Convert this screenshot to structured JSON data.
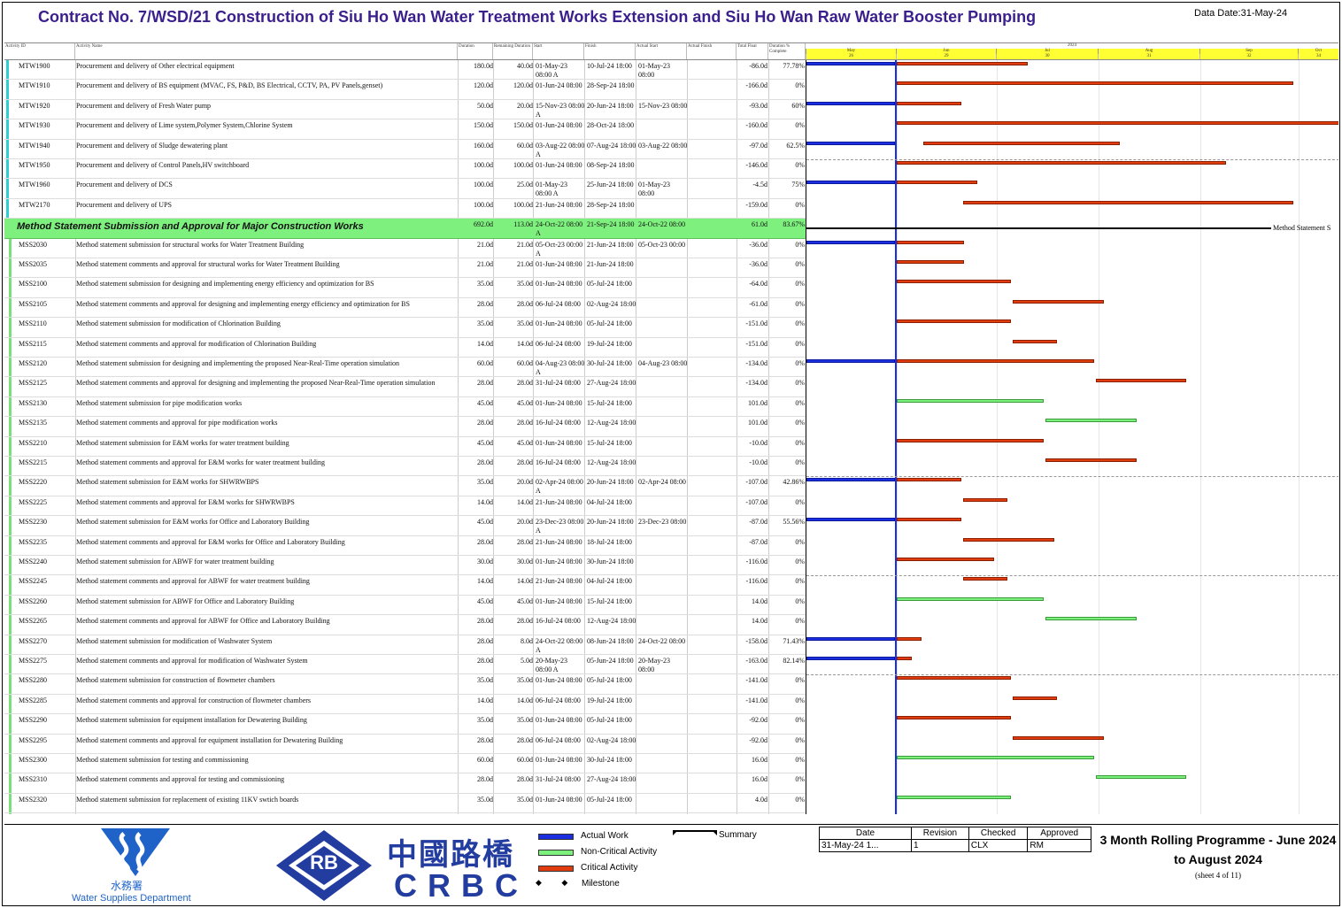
{
  "title": "Contract No. 7/WSD/21 Construction of Siu Ho Wan Water Treatment Works Extension and Siu Ho Wan Raw Water Booster Pumping",
  "data_date": "Data Date:31-May-24",
  "columns": [
    "Activity ID",
    "Activity Name",
    "Duration",
    "Remaining Duration",
    "Start",
    "Finish",
    "Actual Start",
    "Actual Finish",
    "Total Float",
    "Duration % Complete"
  ],
  "timescale": {
    "year": "2024",
    "months": [
      "May",
      "Jun",
      "Jul",
      "Aug",
      "Sep",
      "Oct"
    ],
    "weeks": [
      "26",
      "27",
      "28",
      "29",
      "30",
      "31",
      "32",
      "33",
      "34",
      "35",
      "36"
    ]
  },
  "rows": [
    {
      "id": "MTW1900",
      "name": "Procurement and delivery of Other electrical equipment",
      "dur": "180.0d",
      "rem": "40.0d",
      "start": "01-May-23 08:00 A",
      "finish": "10-Jul-24 18:00",
      "astart": "01-May-23 08:00",
      "float": "-86.0d",
      "pct": "77.78%",
      "bars": [
        {
          "type": "actual",
          "s": 0,
          "e": 100
        },
        {
          "type": "critical",
          "s": 102,
          "e": 250
        }
      ]
    },
    {
      "id": "MTW1910",
      "name": "Procurement and delivery of BS equipment (MVAC, FS, P&D, BS Electrical, CCTV, PA, PV Panels,genset)",
      "dur": "120.0d",
      "rem": "120.0d",
      "start": "01-Jun-24 08:00",
      "finish": "28-Sep-24 18:00",
      "astart": "",
      "float": "-166.0d",
      "pct": "0%",
      "bars": [
        {
          "type": "critical",
          "s": 102,
          "e": 550
        }
      ]
    },
    {
      "id": "MTW1920",
      "name": "Procurement and delivery of Fresh Water pump",
      "dur": "50.0d",
      "rem": "20.0d",
      "start": "15-Nov-23 08:00 A",
      "finish": "20-Jun-24 18:00",
      "astart": "15-Nov-23 08:00",
      "float": "-93.0d",
      "pct": "60%",
      "bars": [
        {
          "type": "actual",
          "s": 0,
          "e": 100
        },
        {
          "type": "critical",
          "s": 102,
          "e": 175
        }
      ]
    },
    {
      "id": "MTW1930",
      "name": "Procurement and delivery of Lime system,Polymer System,Chlorine System",
      "dur": "150.0d",
      "rem": "150.0d",
      "start": "01-Jun-24 08:00",
      "finish": "28-Oct-24 18:00",
      "astart": "",
      "float": "-160.0d",
      "pct": "0%",
      "bars": [
        {
          "type": "critical",
          "s": 102,
          "e": 602
        }
      ]
    },
    {
      "id": "MTW1940",
      "name": "Procurement and delivery of Sludge dewatering plant",
      "dur": "160.0d",
      "rem": "60.0d",
      "start": "03-Aug-22 08:00 A",
      "finish": "07-Aug-24 18:00",
      "astart": "03-Aug-22 08:00",
      "float": "-97.0d",
      "pct": "62.5%",
      "bars": [
        {
          "type": "actual",
          "s": 0,
          "e": 100
        },
        {
          "type": "critical",
          "s": 132,
          "e": 354
        }
      ]
    },
    {
      "id": "MTW1950",
      "name": "Procurement and delivery of Control Panels,HV switchboard",
      "dur": "100.0d",
      "rem": "100.0d",
      "start": "01-Jun-24 08:00",
      "finish": "08-Sep-24 18:00",
      "astart": "",
      "float": "-146.0d",
      "pct": "0%",
      "bars": [
        {
          "type": "critical",
          "s": 102,
          "e": 474
        }
      ]
    },
    {
      "id": "MTW1960",
      "name": "Procurement and delivery of DCS",
      "dur": "100.0d",
      "rem": "25.0d",
      "start": "01-May-23 08:00 A",
      "finish": "25-Jun-24 18:00",
      "astart": "01-May-23 08:00",
      "float": "-4.5d",
      "pct": "75%",
      "bars": [
        {
          "type": "actual",
          "s": 0,
          "e": 100
        },
        {
          "type": "critical",
          "s": 102,
          "e": 193
        }
      ]
    },
    {
      "id": "MTW2170",
      "name": "Procurement and delivery of UPS",
      "dur": "100.0d",
      "rem": "100.0d",
      "start": "21-Jun-24 08:00",
      "finish": "28-Sep-24 18:00",
      "astart": "",
      "float": "-159.0d",
      "pct": "0%",
      "bars": [
        {
          "type": "critical",
          "s": 177,
          "e": 550
        }
      ]
    },
    {
      "band": true,
      "wbs": "Method Statement Submission and Approval for Major Construction Works",
      "dur": "692.0d",
      "rem": "113.0d",
      "start": "24-Oct-22 08:00 A",
      "finish": "21-Sep-24 18:00",
      "astart": "24-Oct-22 08:00",
      "float": "61.0d",
      "pct": "83.67%",
      "summary_label": "Method Statement S"
    },
    {
      "id": "MSS2030",
      "name": "Method statement submission for structural works for Water Treatment Building",
      "dur": "21.0d",
      "rem": "21.0d",
      "start": "05-Oct-23 00:00 A",
      "finish": "21-Jun-24 18:00",
      "astart": "05-Oct-23 00:00",
      "float": "-36.0d",
      "pct": "0%",
      "bars": [
        {
          "type": "actual",
          "s": 0,
          "e": 100
        },
        {
          "type": "critical",
          "s": 102,
          "e": 178
        }
      ]
    },
    {
      "id": "MSS2035",
      "name": "Method statement comments and approval for structural works for Water Treatment Building",
      "dur": "21.0d",
      "rem": "21.0d",
      "start": "01-Jun-24 08:00",
      "finish": "21-Jun-24 18:00",
      "astart": "",
      "float": "-36.0d",
      "pct": "0%",
      "bars": [
        {
          "type": "critical",
          "s": 102,
          "e": 178
        }
      ]
    },
    {
      "id": "MSS2100",
      "name": "Method statement submission for designing and implementing energy efficiency and optimization for BS",
      "dur": "35.0d",
      "rem": "35.0d",
      "start": "01-Jun-24 08:00",
      "finish": "05-Jul-24 18:00",
      "astart": "",
      "float": "-64.0d",
      "pct": "0%",
      "bars": [
        {
          "type": "critical",
          "s": 102,
          "e": 231
        }
      ]
    },
    {
      "id": "MSS2105",
      "name": "Method statement comments and approval for designing and implementing energy efficiency and optimization for BS",
      "dur": "28.0d",
      "rem": "28.0d",
      "start": "06-Jul-24 08:00",
      "finish": "02-Aug-24 18:00",
      "astart": "",
      "float": "-61.0d",
      "pct": "0%",
      "bars": [
        {
          "type": "critical",
          "s": 233,
          "e": 336
        }
      ]
    },
    {
      "id": "MSS2110",
      "name": "Method statement submission for modification of Chlorination Building",
      "dur": "35.0d",
      "rem": "35.0d",
      "start": "01-Jun-24 08:00",
      "finish": "05-Jul-24 18:00",
      "astart": "",
      "float": "-151.0d",
      "pct": "0%",
      "bars": [
        {
          "type": "critical",
          "s": 102,
          "e": 231
        }
      ]
    },
    {
      "id": "MSS2115",
      "name": "Method statement  comments and approval for modification of Chlorination Building",
      "dur": "14.0d",
      "rem": "14.0d",
      "start": "06-Jul-24 08:00",
      "finish": "19-Jul-24 18:00",
      "astart": "",
      "float": "-151.0d",
      "pct": "0%",
      "bars": [
        {
          "type": "critical",
          "s": 233,
          "e": 283
        }
      ]
    },
    {
      "id": "MSS2120",
      "name": "Method statement submission for designing and implementing the proposed Near-Real-Time operation simulation",
      "dur": "60.0d",
      "rem": "60.0d",
      "start": "04-Aug-23 08:00 A",
      "finish": "30-Jul-24 18:00",
      "astart": "04-Aug-23 08:00",
      "float": "-134.0d",
      "pct": "0%",
      "bars": [
        {
          "type": "actual",
          "s": 0,
          "e": 100
        },
        {
          "type": "critical",
          "s": 102,
          "e": 325
        }
      ]
    },
    {
      "id": "MSS2125",
      "name": "Method statement comments and approval for designing and implementing the proposed Near-Real-Time operation simulation",
      "dur": "28.0d",
      "rem": "28.0d",
      "start": "31-Jul-24 08:00",
      "finish": "27-Aug-24 18:00",
      "astart": "",
      "float": "-134.0d",
      "pct": "0%",
      "bars": [
        {
          "type": "critical",
          "s": 327,
          "e": 429
        }
      ]
    },
    {
      "id": "MSS2130",
      "name": "Method statement submission for pipe modification works",
      "dur": "45.0d",
      "rem": "45.0d",
      "start": "01-Jun-24 08:00",
      "finish": "15-Jul-24 18:00",
      "astart": "",
      "float": "101.0d",
      "pct": "0%",
      "bars": [
        {
          "type": "noncrit",
          "s": 102,
          "e": 268
        }
      ]
    },
    {
      "id": "MSS2135",
      "name": "Method statement comments and approval for pipe modification works",
      "dur": "28.0d",
      "rem": "28.0d",
      "start": "16-Jul-24 08:00",
      "finish": "12-Aug-24 18:00",
      "astart": "",
      "float": "101.0d",
      "pct": "0%",
      "bars": [
        {
          "type": "noncrit",
          "s": 270,
          "e": 373
        }
      ]
    },
    {
      "id": "MSS2210",
      "name": "Method statement submission for E&M works for water treatment building",
      "dur": "45.0d",
      "rem": "45.0d",
      "start": "01-Jun-24 08:00",
      "finish": "15-Jul-24 18:00",
      "astart": "",
      "float": "-10.0d",
      "pct": "0%",
      "bars": [
        {
          "type": "critical",
          "s": 102,
          "e": 268
        }
      ]
    },
    {
      "id": "MSS2215",
      "name": "Method statement comments and approval for E&M works for water treatment building",
      "dur": "28.0d",
      "rem": "28.0d",
      "start": "16-Jul-24 08:00",
      "finish": "12-Aug-24 18:00",
      "astart": "",
      "float": "-10.0d",
      "pct": "0%",
      "bars": [
        {
          "type": "critical",
          "s": 270,
          "e": 373
        }
      ]
    },
    {
      "id": "MSS2220",
      "name": "Method statement submission for E&M works for SHWRWBPS",
      "dur": "35.0d",
      "rem": "20.0d",
      "start": "02-Apr-24 08:00 A",
      "finish": "20-Jun-24 18:00",
      "astart": "02-Apr-24 08:00",
      "float": "-107.0d",
      "pct": "42.86%",
      "bars": [
        {
          "type": "actual",
          "s": 0,
          "e": 100
        },
        {
          "type": "critical",
          "s": 102,
          "e": 175
        }
      ]
    },
    {
      "id": "MSS2225",
      "name": "Method statement comments and approval for E&M works for SHWRWBPS",
      "dur": "14.0d",
      "rem": "14.0d",
      "start": "21-Jun-24 08:00",
      "finish": "04-Jul-24 18:00",
      "astart": "",
      "float": "-107.0d",
      "pct": "0%",
      "bars": [
        {
          "type": "critical",
          "s": 177,
          "e": 227
        }
      ]
    },
    {
      "id": "MSS2230",
      "name": "Method statement submission for E&M works for Office and Laboratory Building",
      "dur": "45.0d",
      "rem": "20.0d",
      "start": "23-Dec-23 08:00 A",
      "finish": "20-Jun-24 18:00",
      "astart": "23-Dec-23 08:00",
      "float": "-87.0d",
      "pct": "55.56%",
      "bars": [
        {
          "type": "actual",
          "s": 0,
          "e": 100
        },
        {
          "type": "critical",
          "s": 102,
          "e": 175
        }
      ]
    },
    {
      "id": "MSS2235",
      "name": "Method statement comments and approval for E&M works for Office and Laboratory Building",
      "dur": "28.0d",
      "rem": "28.0d",
      "start": "21-Jun-24 08:00",
      "finish": "18-Jul-24 18:00",
      "astart": "",
      "float": "-87.0d",
      "pct": "0%",
      "bars": [
        {
          "type": "critical",
          "s": 177,
          "e": 280
        }
      ]
    },
    {
      "id": "MSS2240",
      "name": "Method statement submission for ABWF for water treatment building",
      "dur": "30.0d",
      "rem": "30.0d",
      "start": "01-Jun-24 08:00",
      "finish": "30-Jun-24 18:00",
      "astart": "",
      "float": "-116.0d",
      "pct": "0%",
      "bars": [
        {
          "type": "critical",
          "s": 102,
          "e": 212
        }
      ]
    },
    {
      "id": "MSS2245",
      "name": "Method statement comments and approval for ABWF for water treatment building",
      "dur": "14.0d",
      "rem": "14.0d",
      "start": "21-Jun-24 08:00",
      "finish": "04-Jul-24 18:00",
      "astart": "",
      "float": "-116.0d",
      "pct": "0%",
      "bars": [
        {
          "type": "critical",
          "s": 177,
          "e": 227
        }
      ]
    },
    {
      "id": "MSS2260",
      "name": "Method statement submission for ABWF for Office and Laboratory Building",
      "dur": "45.0d",
      "rem": "45.0d",
      "start": "01-Jun-24 08:00",
      "finish": "15-Jul-24 18:00",
      "astart": "",
      "float": "14.0d",
      "pct": "0%",
      "bars": [
        {
          "type": "noncrit",
          "s": 102,
          "e": 268
        }
      ]
    },
    {
      "id": "MSS2265",
      "name": "Method statement comments and approval for ABWF for Office and Laboratory Building",
      "dur": "28.0d",
      "rem": "28.0d",
      "start": "16-Jul-24 08:00",
      "finish": "12-Aug-24 18:00",
      "astart": "",
      "float": "14.0d",
      "pct": "0%",
      "bars": [
        {
          "type": "noncrit",
          "s": 270,
          "e": 373
        }
      ]
    },
    {
      "id": "MSS2270",
      "name": "Method statement submission for modification of Washwater System",
      "dur": "28.0d",
      "rem": "8.0d",
      "start": "24-Oct-22 08:00 A",
      "finish": "08-Jun-24 18:00",
      "astart": "24-Oct-22 08:00",
      "float": "-158.0d",
      "pct": "71.43%",
      "bars": [
        {
          "type": "actual",
          "s": 0,
          "e": 100
        },
        {
          "type": "critical",
          "s": 102,
          "e": 130
        }
      ]
    },
    {
      "id": "MSS2275",
      "name": "Method statement comments and approval for modification of Washwater System",
      "dur": "28.0d",
      "rem": "5.0d",
      "start": "20-May-23 08:00 A",
      "finish": "05-Jun-24 18:00",
      "astart": "20-May-23 08:00",
      "float": "-163.0d",
      "pct": "82.14%",
      "bars": [
        {
          "type": "actual",
          "s": 0,
          "e": 100
        },
        {
          "type": "critical",
          "s": 102,
          "e": 119
        }
      ]
    },
    {
      "id": "MSS2280",
      "name": "Method statement submission for construction of flowmeter chambers",
      "dur": "35.0d",
      "rem": "35.0d",
      "start": "01-Jun-24 08:00",
      "finish": "05-Jul-24 18:00",
      "astart": "",
      "float": "-141.0d",
      "pct": "0%",
      "bars": [
        {
          "type": "critical",
          "s": 102,
          "e": 231
        }
      ]
    },
    {
      "id": "MSS2285",
      "name": "Method statement comments and approval for construction of flowmeter chambers",
      "dur": "14.0d",
      "rem": "14.0d",
      "start": "06-Jul-24 08:00",
      "finish": "19-Jul-24 18:00",
      "astart": "",
      "float": "-141.0d",
      "pct": "0%",
      "bars": [
        {
          "type": "critical",
          "s": 233,
          "e": 283
        }
      ]
    },
    {
      "id": "MSS2290",
      "name": "Method statement submission for equipment installation for Dewatering Building",
      "dur": "35.0d",
      "rem": "35.0d",
      "start": "01-Jun-24 08:00",
      "finish": "05-Jul-24 18:00",
      "astart": "",
      "float": "-92.0d",
      "pct": "0%",
      "bars": [
        {
          "type": "critical",
          "s": 102,
          "e": 231
        }
      ]
    },
    {
      "id": "MSS2295",
      "name": "Method statement comments and approval for equipment installation for Dewatering Building",
      "dur": "28.0d",
      "rem": "28.0d",
      "start": "06-Jul-24 08:00",
      "finish": "02-Aug-24 18:00",
      "astart": "",
      "float": "-92.0d",
      "pct": "0%",
      "bars": [
        {
          "type": "critical",
          "s": 233,
          "e": 336
        }
      ]
    },
    {
      "id": "MSS2300",
      "name": "Method statement submission for testing and commissioning",
      "dur": "60.0d",
      "rem": "60.0d",
      "start": "01-Jun-24 08:00",
      "finish": "30-Jul-24 18:00",
      "astart": "",
      "float": "16.0d",
      "pct": "0%",
      "bars": [
        {
          "type": "noncrit",
          "s": 102,
          "e": 325
        }
      ]
    },
    {
      "id": "MSS2310",
      "name": "Method statement comments and approval for testing and commissioning",
      "dur": "28.0d",
      "rem": "28.0d",
      "start": "31-Jul-24 08:00",
      "finish": "27-Aug-24 18:00",
      "astart": "",
      "float": "16.0d",
      "pct": "0%",
      "bars": [
        {
          "type": "noncrit",
          "s": 327,
          "e": 429
        }
      ]
    },
    {
      "id": "MSS2320",
      "name": "Method statement submission for replacement of existing 11KV swtich boards",
      "dur": "35.0d",
      "rem": "35.0d",
      "start": "01-Jun-24 08:00",
      "finish": "05-Jul-24 18:00",
      "astart": "",
      "float": "4.0d",
      "pct": "0%",
      "bars": [
        {
          "type": "noncrit",
          "s": 102,
          "e": 231
        }
      ]
    }
  ],
  "legend": {
    "actual": "Actual Work",
    "noncritical": "Non-Critical Activity",
    "critical": "Critical Activity",
    "milestone": "Milestone",
    "summary": "Summary"
  },
  "revision": {
    "headers": [
      "Date",
      "Revision",
      "Checked",
      "Approved"
    ],
    "row": [
      "31-May-24 1...",
      "1",
      "CLX",
      "RM"
    ]
  },
  "programme_title": "3 Month Rolling Programme - June 2024 to August 2024",
  "sheet": "(sheet 4 of 11)",
  "logos": {
    "wsd_chinese": "水務署",
    "wsd_english": "Water Supplies Department",
    "rb": "RB",
    "crbc_chinese": "中國路橋",
    "crbc": "CRBC"
  },
  "colors": {
    "actual": "#1c2fe0",
    "critical": "#e03c10",
    "noncritical": "#7cf07c",
    "band": "#7ef07e",
    "title": "#3b1f8c"
  }
}
